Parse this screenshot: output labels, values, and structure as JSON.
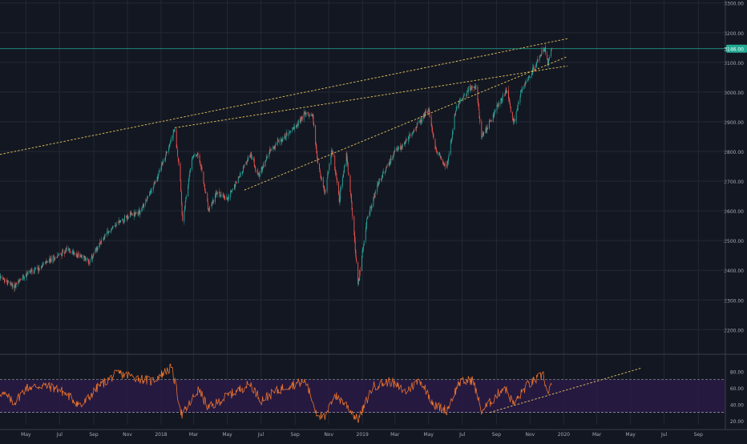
{
  "colors": {
    "background": "#131722",
    "grid": "#232833",
    "candle_up": "#26a69a",
    "candle_down": "#ef5350",
    "trendline": "#e6c65a",
    "price_line": "#22ab94",
    "rsi_line": "#e8722c",
    "rsi_band": "#2a1a45",
    "axis_text": "#a5a9b4",
    "separator": "#3a3e4a"
  },
  "chart_data": [
    {
      "type": "candlestick",
      "title": "",
      "x_range": [
        "2017-03-15",
        "2020-10-20"
      ],
      "ylim": [
        2120,
        3310
      ],
      "y_ticks": [
        2200,
        2300,
        2400,
        2500,
        2600,
        2700,
        2800,
        2900,
        3000,
        3100,
        3200,
        3300
      ],
      "y_tick_labels": [
        "2200.00",
        "2300.00",
        "2400.00",
        "2500.00",
        "2600.00",
        "2700.00",
        "2800.00",
        "2900.00",
        "3000.00",
        "3100.00",
        "3200.00",
        "3300.00"
      ],
      "last_price": 3146,
      "last_price_label": "3146.00",
      "price_path": [
        [
          "2017-03-15",
          2375
        ],
        [
          "2017-04-10",
          2345
        ],
        [
          "2017-05-01",
          2390
        ],
        [
          "2017-05-25",
          2410
        ],
        [
          "2017-06-20",
          2440
        ],
        [
          "2017-07-15",
          2470
        ],
        [
          "2017-08-10",
          2445
        ],
        [
          "2017-08-25",
          2430
        ],
        [
          "2017-09-15",
          2500
        ],
        [
          "2017-10-10",
          2555
        ],
        [
          "2017-11-05",
          2585
        ],
        [
          "2017-11-25",
          2600
        ],
        [
          "2017-12-20",
          2690
        ],
        [
          "2018-01-10",
          2790
        ],
        [
          "2018-01-26",
          2875
        ],
        [
          "2018-02-05",
          2700
        ],
        [
          "2018-02-09",
          2560
        ],
        [
          "2018-02-26",
          2780
        ],
        [
          "2018-03-08",
          2790
        ],
        [
          "2018-03-15",
          2740
        ],
        [
          "2018-03-28",
          2600
        ],
        [
          "2018-04-12",
          2660
        ],
        [
          "2018-05-01",
          2640
        ],
        [
          "2018-05-25",
          2725
        ],
        [
          "2018-06-12",
          2790
        ],
        [
          "2018-06-28",
          2720
        ],
        [
          "2018-07-20",
          2810
        ],
        [
          "2018-08-20",
          2860
        ],
        [
          "2018-09-20",
          2930
        ],
        [
          "2018-10-03",
          2920
        ],
        [
          "2018-10-11",
          2770
        ],
        [
          "2018-10-25",
          2660
        ],
        [
          "2018-11-07",
          2810
        ],
        [
          "2018-11-20",
          2640
        ],
        [
          "2018-12-03",
          2790
        ],
        [
          "2018-12-14",
          2590
        ],
        [
          "2018-12-24",
          2350
        ],
        [
          "2019-01-10",
          2580
        ],
        [
          "2019-02-01",
          2700
        ],
        [
          "2019-03-01",
          2800
        ],
        [
          "2019-03-20",
          2830
        ],
        [
          "2019-04-15",
          2900
        ],
        [
          "2019-05-01",
          2940
        ],
        [
          "2019-05-13",
          2810
        ],
        [
          "2019-06-03",
          2745
        ],
        [
          "2019-06-20",
          2950
        ],
        [
          "2019-07-12",
          3010
        ],
        [
          "2019-07-26",
          3025
        ],
        [
          "2019-08-05",
          2845
        ],
        [
          "2019-08-20",
          2900
        ],
        [
          "2019-09-10",
          2980
        ],
        [
          "2019-09-20",
          3005
        ],
        [
          "2019-10-02",
          2890
        ],
        [
          "2019-10-15",
          3000
        ],
        [
          "2019-10-28",
          3040
        ],
        [
          "2019-11-10",
          3090
        ],
        [
          "2019-11-27",
          3150
        ],
        [
          "2019-12-03",
          3095
        ],
        [
          "2019-12-10",
          3146
        ]
      ],
      "trendlines": [
        {
          "from": [
            "2017-03-15",
            2790
          ],
          "to": [
            "2020-01-08",
            3180
          ]
        },
        {
          "from": [
            "2018-01-26",
            2880
          ],
          "to": [
            "2020-01-08",
            3088
          ]
        },
        {
          "from": [
            "2018-06-01",
            2670
          ],
          "to": [
            "2020-01-08",
            3120
          ]
        }
      ]
    },
    {
      "type": "line",
      "title": "",
      "series": [
        {
          "values_description_ref": "rsi_path"
        }
      ],
      "ylim": [
        15,
        100
      ],
      "y_ticks": [
        20,
        40,
        60,
        80
      ],
      "y_tick_labels": [
        "20.00",
        "40.00",
        "60.00",
        "80.00"
      ],
      "band": [
        30,
        70
      ],
      "rsi_path": [
        [
          "2017-03-15",
          55
        ],
        [
          "2017-04-10",
          42
        ],
        [
          "2017-05-01",
          60
        ],
        [
          "2017-06-01",
          63
        ],
        [
          "2017-07-01",
          58
        ],
        [
          "2017-08-10",
          38
        ],
        [
          "2017-09-10",
          62
        ],
        [
          "2017-10-15",
          78
        ],
        [
          "2017-11-20",
          72
        ],
        [
          "2017-12-15",
          68
        ],
        [
          "2018-01-20",
          85
        ],
        [
          "2018-02-08",
          26
        ],
        [
          "2018-03-10",
          58
        ],
        [
          "2018-03-28",
          35
        ],
        [
          "2018-05-01",
          50
        ],
        [
          "2018-06-12",
          65
        ],
        [
          "2018-07-01",
          45
        ],
        [
          "2018-08-15",
          62
        ],
        [
          "2018-09-20",
          68
        ],
        [
          "2018-10-10",
          30
        ],
        [
          "2018-10-26",
          22
        ],
        [
          "2018-11-10",
          52
        ],
        [
          "2018-12-05",
          38
        ],
        [
          "2018-12-24",
          20
        ],
        [
          "2019-01-20",
          62
        ],
        [
          "2019-02-20",
          68
        ],
        [
          "2019-03-20",
          55
        ],
        [
          "2019-04-15",
          70
        ],
        [
          "2019-05-13",
          38
        ],
        [
          "2019-06-03",
          33
        ],
        [
          "2019-06-25",
          66
        ],
        [
          "2019-07-20",
          70
        ],
        [
          "2019-08-05",
          32
        ],
        [
          "2019-08-25",
          45
        ],
        [
          "2019-09-15",
          62
        ],
        [
          "2019-10-02",
          40
        ],
        [
          "2019-10-25",
          62
        ],
        [
          "2019-11-25",
          76
        ],
        [
          "2019-12-03",
          52
        ],
        [
          "2019-12-10",
          62
        ]
      ],
      "trendline": {
        "from": [
          "2019-08-20",
          30
        ],
        "to": [
          "2020-05-20",
          84
        ]
      }
    }
  ],
  "x_axis": {
    "ticks": [
      [
        "2017-05-01",
        "May"
      ],
      [
        "2017-07-01",
        "Jul"
      ],
      [
        "2017-09-01",
        "Sep"
      ],
      [
        "2017-11-01",
        "Nov"
      ],
      [
        "2018-01-01",
        "2018"
      ],
      [
        "2018-03-01",
        "Mar"
      ],
      [
        "2018-05-01",
        "May"
      ],
      [
        "2018-07-01",
        "Jul"
      ],
      [
        "2018-09-01",
        "Sep"
      ],
      [
        "2018-11-01",
        "Nov"
      ],
      [
        "2019-01-01",
        "2019"
      ],
      [
        "2019-03-01",
        "Mar"
      ],
      [
        "2019-05-01",
        "May"
      ],
      [
        "2019-07-01",
        "Jul"
      ],
      [
        "2019-09-01",
        "Sep"
      ],
      [
        "2019-11-01",
        "Nov"
      ],
      [
        "2020-01-01",
        "2020"
      ],
      [
        "2020-03-01",
        "Mar"
      ],
      [
        "2020-05-01",
        "May"
      ],
      [
        "2020-07-01",
        "Jul"
      ],
      [
        "2020-09-01",
        "Sep"
      ]
    ]
  }
}
